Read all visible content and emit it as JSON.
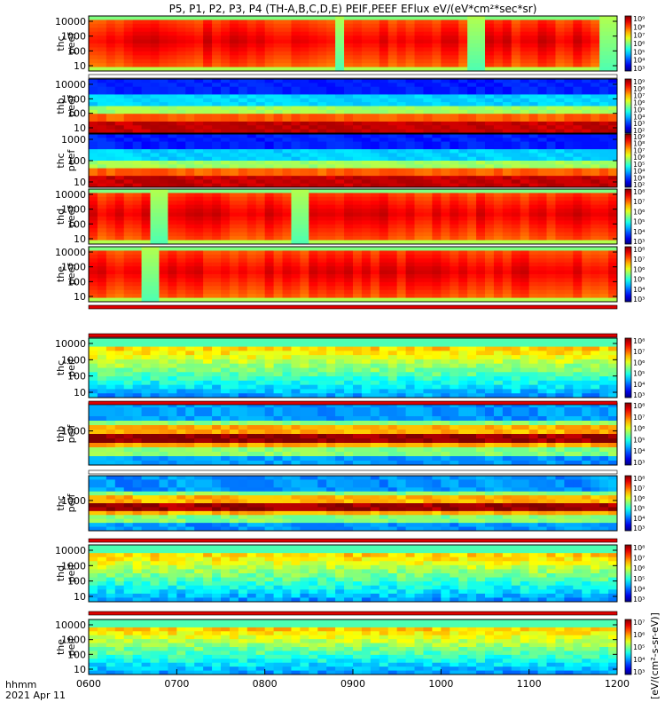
{
  "chart_data": {
    "type": "heatmap",
    "title": "P5, P1, P2, P3, P4 (TH-A,B,C,D,E) PEIF,PEEF EFlux eV/(eV*cm²*sec*sr)",
    "x_label": "hhmm",
    "date_label": "2021 Apr 11",
    "x_ticks": [
      "0600",
      "0700",
      "0800",
      "0900",
      "1000",
      "1100",
      "1200"
    ],
    "x_range": [
      "0600",
      "1200"
    ],
    "y_scale": "log",
    "colorbar_unit": "[eV/(cm²-s-sr-eV)]",
    "panels": [
      {
        "name": "thc peef",
        "ylabel1": "thc",
        "ylabel2": "peef",
        "y_ticks": [
          "10",
          "100",
          "1000",
          "10000"
        ],
        "kind": "peef-active",
        "cb_ticks": [
          "10³",
          "10⁴",
          "10⁵",
          "10⁶",
          "10⁷",
          "10⁸",
          "10⁹"
        ]
      },
      {
        "name": "thb peef",
        "ylabel1": "thb",
        "ylabel2": "peef",
        "y_ticks": [
          "10",
          "100",
          "1000",
          "10000"
        ],
        "kind": "peef-band",
        "cb_ticks": [
          "10²",
          "10³",
          "10⁴",
          "10⁵",
          "10⁶",
          "10⁷",
          "10⁸",
          "10⁹"
        ]
      },
      {
        "name": "thc peef",
        "ylabel1": "thc",
        "ylabel2": "peef",
        "y_ticks": [
          "10",
          "100",
          "1000"
        ],
        "kind": "peef-band",
        "cb_ticks": [
          "10²",
          "10³",
          "10⁴",
          "10⁵",
          "10⁶",
          "10⁷",
          "10⁸",
          "10⁹"
        ]
      },
      {
        "name": "thd peef",
        "ylabel1": "thd",
        "ylabel2": "peef",
        "y_ticks": [
          "10",
          "100",
          "1000",
          "10000"
        ],
        "kind": "peef-active",
        "cb_ticks": [
          "10³",
          "10⁴",
          "10⁵",
          "10⁶",
          "10⁷",
          "10⁸"
        ]
      },
      {
        "name": "the peef",
        "ylabel1": "the",
        "ylabel2": "peef",
        "y_ticks": [
          "10",
          "100",
          "1000",
          "10000"
        ],
        "kind": "peef-active",
        "cb_ticks": [
          "10³",
          "10⁴",
          "10⁵",
          "10⁶",
          "10⁷",
          "10⁸"
        ]
      },
      {
        "name": "thc peif",
        "ylabel1": "thc",
        "ylabel2": "peif",
        "y_ticks": [
          "10",
          "100",
          "1000",
          "10000"
        ],
        "kind": "peif-low",
        "cb_ticks": [
          "10³",
          "10⁴",
          "10⁵",
          "10⁶",
          "10⁷",
          "10⁸"
        ]
      },
      {
        "name": "thb peif",
        "ylabel1": "thb",
        "ylabel2": "peif",
        "y_ticks": [
          "1000"
        ],
        "kind": "peif-band",
        "cb_ticks": [
          "10³",
          "10⁴",
          "10⁵",
          "10⁶",
          "10⁷",
          "10⁸"
        ]
      },
      {
        "name": "thc peif",
        "ylabel1": "thc",
        "ylabel2": "peif",
        "y_ticks": [
          "1000"
        ],
        "kind": "peif-band",
        "cb_ticks": [
          "10³",
          "10⁴",
          "10⁵",
          "10⁶",
          "10⁷",
          "10⁸"
        ]
      },
      {
        "name": "thd peif",
        "ylabel1": "thd",
        "ylabel2": "peif",
        "y_ticks": [
          "10",
          "100",
          "1000",
          "10000"
        ],
        "kind": "peif-low",
        "cb_ticks": [
          "10³",
          "10⁴",
          "10⁵",
          "10⁶",
          "10⁷",
          "10⁸"
        ]
      },
      {
        "name": "the peif",
        "ylabel1": "the",
        "ylabel2": "peif",
        "y_ticks": [
          "10",
          "100",
          "1000",
          "10000"
        ],
        "kind": "peif-low",
        "cb_ticks": [
          "10³",
          "10⁴",
          "10⁵",
          "10⁶",
          "10⁷"
        ]
      }
    ]
  }
}
